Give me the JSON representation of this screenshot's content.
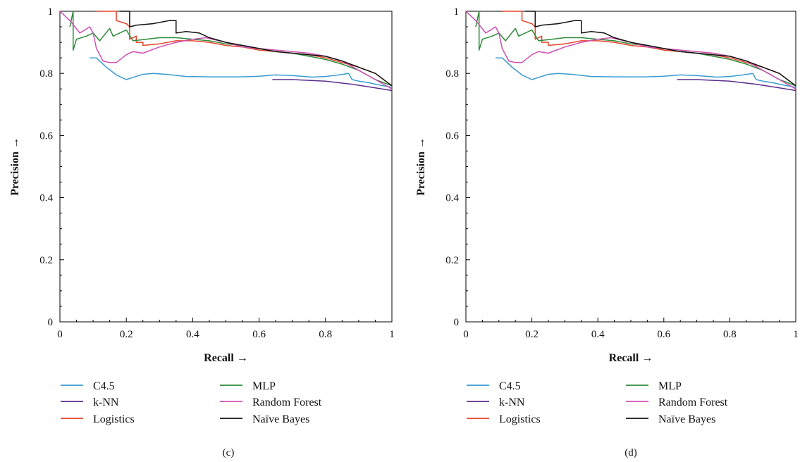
{
  "chart_data": [
    {
      "type": "line",
      "subfigure": "(c)",
      "xlabel": "Recall →",
      "ylabel": "Precision →",
      "xlim": [
        0,
        1
      ],
      "ylim": [
        0,
        1
      ],
      "xticks": [
        "0",
        "0.2",
        "0.4",
        "0.6",
        "0.8",
        "1"
      ],
      "yticks": [
        "0",
        "0.2",
        "0.4",
        "0.6",
        "0.8",
        "1"
      ],
      "grid": false,
      "legend_position": "bottom",
      "series": [
        {
          "name": "C4.5",
          "color": "#3a9bd2",
          "x": [
            0.09,
            0.11,
            0.14,
            0.17,
            0.2,
            0.22,
            0.25,
            0.28,
            0.32,
            0.38,
            0.45,
            0.55,
            0.6,
            0.65,
            0.7,
            0.76,
            0.8,
            0.84,
            0.87,
            0.88,
            0.9,
            0.93,
            0.96,
            1.0
          ],
          "y": [
            0.85,
            0.85,
            0.82,
            0.795,
            0.78,
            0.787,
            0.797,
            0.8,
            0.797,
            0.79,
            0.789,
            0.789,
            0.791,
            0.795,
            0.793,
            0.788,
            0.79,
            0.795,
            0.8,
            0.78,
            0.775,
            0.77,
            0.763,
            0.755
          ]
        },
        {
          "name": "k-NN",
          "color": "#5b2d8e",
          "x": [
            0.64,
            0.7,
            0.8,
            0.88,
            0.94,
            1.0
          ],
          "y": [
            0.78,
            0.78,
            0.775,
            0.765,
            0.755,
            0.745
          ]
        },
        {
          "name": "Logistics",
          "color": "#e5432a",
          "x": [
            0.11,
            0.17,
            0.17,
            0.2,
            0.21,
            0.21,
            0.23,
            0.23,
            0.25,
            0.25,
            0.3,
            0.35,
            0.4,
            0.45,
            0.5,
            0.55,
            0.6,
            0.65,
            0.7,
            0.75,
            0.8,
            0.85,
            0.9,
            0.95,
            1.0
          ],
          "y": [
            1.0,
            1.0,
            0.97,
            0.96,
            0.95,
            0.91,
            0.92,
            0.9,
            0.9,
            0.89,
            0.895,
            0.905,
            0.905,
            0.9,
            0.89,
            0.885,
            0.875,
            0.87,
            0.865,
            0.86,
            0.85,
            0.835,
            0.82,
            0.8,
            0.76
          ]
        },
        {
          "name": "MLP",
          "color": "#2e8b3a",
          "x": [
            0.03,
            0.04,
            0.04,
            0.05,
            0.08,
            0.1,
            0.12,
            0.15,
            0.16,
            0.2,
            0.22,
            0.26,
            0.3,
            0.35,
            0.4,
            0.45,
            0.5,
            0.55,
            0.6,
            0.65,
            0.7,
            0.75,
            0.8,
            0.85,
            0.9,
            0.95,
            1.0
          ],
          "y": [
            0.95,
            1.0,
            0.875,
            0.91,
            0.92,
            0.93,
            0.905,
            0.945,
            0.92,
            0.94,
            0.905,
            0.91,
            0.915,
            0.915,
            0.91,
            0.905,
            0.895,
            0.89,
            0.88,
            0.87,
            0.865,
            0.855,
            0.845,
            0.83,
            0.81,
            0.78,
            0.76
          ]
        },
        {
          "name": "Random Forest",
          "color": "#cf4fb2",
          "x": [
            0.0,
            0.03,
            0.06,
            0.09,
            0.1,
            0.11,
            0.13,
            0.15,
            0.17,
            0.2,
            0.22,
            0.25,
            0.3,
            0.35,
            0.4,
            0.44,
            0.5,
            0.55,
            0.6,
            0.65,
            0.7,
            0.75,
            0.8,
            0.85,
            0.9,
            0.95,
            1.0
          ],
          "y": [
            1.0,
            0.97,
            0.93,
            0.95,
            0.93,
            0.88,
            0.84,
            0.835,
            0.835,
            0.86,
            0.87,
            0.865,
            0.885,
            0.9,
            0.91,
            0.915,
            0.9,
            0.885,
            0.88,
            0.875,
            0.87,
            0.865,
            0.855,
            0.84,
            0.81,
            0.78,
            0.75
          ]
        },
        {
          "name": "Naïve Bayes",
          "color": "#111111",
          "x": [
            0.18,
            0.21,
            0.21,
            0.23,
            0.28,
            0.33,
            0.35,
            0.35,
            0.38,
            0.42,
            0.45,
            0.5,
            0.55,
            0.6,
            0.65,
            0.7,
            0.75,
            0.8,
            0.85,
            0.9,
            0.95,
            1.0
          ],
          "y": [
            1.0,
            1.0,
            0.95,
            0.955,
            0.96,
            0.97,
            0.97,
            0.93,
            0.935,
            0.93,
            0.915,
            0.9,
            0.89,
            0.88,
            0.87,
            0.865,
            0.86,
            0.855,
            0.84,
            0.82,
            0.8,
            0.76
          ]
        }
      ]
    },
    {
      "type": "line",
      "subfigure": "(d)",
      "xlabel": "Recall →",
      "ylabel": "Precision →",
      "xlim": [
        0,
        1
      ],
      "ylim": [
        0,
        1
      ],
      "xticks": [
        "0",
        "0.2",
        "0.4",
        "0.6",
        "0.8",
        "1"
      ],
      "yticks": [
        "0",
        "0.2",
        "0.4",
        "0.6",
        "0.8",
        "1"
      ],
      "grid": false,
      "legend_position": "bottom",
      "series": [
        {
          "name": "C4.5",
          "color": "#3a9bd2",
          "x": [
            0.09,
            0.11,
            0.14,
            0.17,
            0.2,
            0.22,
            0.25,
            0.28,
            0.32,
            0.38,
            0.45,
            0.55,
            0.6,
            0.65,
            0.7,
            0.76,
            0.8,
            0.84,
            0.87,
            0.88,
            0.9,
            0.93,
            0.96,
            1.0
          ],
          "y": [
            0.85,
            0.85,
            0.82,
            0.795,
            0.78,
            0.787,
            0.797,
            0.8,
            0.797,
            0.79,
            0.789,
            0.789,
            0.791,
            0.795,
            0.793,
            0.788,
            0.79,
            0.795,
            0.8,
            0.78,
            0.775,
            0.77,
            0.763,
            0.755
          ]
        },
        {
          "name": "k-NN",
          "color": "#5b2d8e",
          "x": [
            0.64,
            0.7,
            0.8,
            0.88,
            0.94,
            1.0
          ],
          "y": [
            0.78,
            0.78,
            0.775,
            0.765,
            0.755,
            0.745
          ]
        },
        {
          "name": "Logistics",
          "color": "#e5432a",
          "x": [
            0.11,
            0.17,
            0.17,
            0.2,
            0.21,
            0.21,
            0.23,
            0.23,
            0.25,
            0.25,
            0.3,
            0.35,
            0.4,
            0.45,
            0.5,
            0.55,
            0.6,
            0.65,
            0.7,
            0.75,
            0.8,
            0.85,
            0.9,
            0.95,
            1.0
          ],
          "y": [
            1.0,
            1.0,
            0.97,
            0.96,
            0.95,
            0.91,
            0.92,
            0.9,
            0.9,
            0.89,
            0.895,
            0.905,
            0.905,
            0.9,
            0.89,
            0.885,
            0.875,
            0.87,
            0.865,
            0.86,
            0.85,
            0.835,
            0.82,
            0.8,
            0.76
          ]
        },
        {
          "name": "MLP",
          "color": "#2e8b3a",
          "x": [
            0.03,
            0.04,
            0.04,
            0.05,
            0.08,
            0.1,
            0.12,
            0.15,
            0.16,
            0.2,
            0.22,
            0.26,
            0.3,
            0.35,
            0.4,
            0.45,
            0.5,
            0.55,
            0.6,
            0.65,
            0.7,
            0.75,
            0.8,
            0.85,
            0.9,
            0.95,
            1.0
          ],
          "y": [
            0.95,
            1.0,
            0.875,
            0.91,
            0.92,
            0.93,
            0.905,
            0.945,
            0.92,
            0.94,
            0.905,
            0.91,
            0.915,
            0.915,
            0.91,
            0.905,
            0.895,
            0.89,
            0.88,
            0.87,
            0.865,
            0.855,
            0.845,
            0.83,
            0.81,
            0.78,
            0.76
          ]
        },
        {
          "name": "Random Forest",
          "color": "#cf4fb2",
          "x": [
            0.0,
            0.03,
            0.06,
            0.09,
            0.1,
            0.11,
            0.13,
            0.15,
            0.17,
            0.2,
            0.22,
            0.25,
            0.3,
            0.35,
            0.4,
            0.44,
            0.5,
            0.55,
            0.6,
            0.65,
            0.7,
            0.75,
            0.8,
            0.85,
            0.9,
            0.95,
            1.0
          ],
          "y": [
            1.0,
            0.97,
            0.93,
            0.95,
            0.93,
            0.88,
            0.84,
            0.835,
            0.835,
            0.86,
            0.87,
            0.865,
            0.885,
            0.9,
            0.91,
            0.915,
            0.9,
            0.885,
            0.88,
            0.875,
            0.87,
            0.865,
            0.855,
            0.84,
            0.81,
            0.78,
            0.75
          ]
        },
        {
          "name": "Naïve Bayes",
          "color": "#111111",
          "x": [
            0.18,
            0.21,
            0.21,
            0.23,
            0.28,
            0.33,
            0.35,
            0.35,
            0.38,
            0.42,
            0.45,
            0.5,
            0.55,
            0.6,
            0.65,
            0.7,
            0.75,
            0.8,
            0.85,
            0.9,
            0.95,
            1.0
          ],
          "y": [
            1.0,
            1.0,
            0.95,
            0.955,
            0.96,
            0.97,
            0.97,
            0.93,
            0.935,
            0.93,
            0.915,
            0.9,
            0.89,
            0.88,
            0.87,
            0.865,
            0.86,
            0.855,
            0.84,
            0.82,
            0.8,
            0.76
          ]
        }
      ]
    }
  ]
}
